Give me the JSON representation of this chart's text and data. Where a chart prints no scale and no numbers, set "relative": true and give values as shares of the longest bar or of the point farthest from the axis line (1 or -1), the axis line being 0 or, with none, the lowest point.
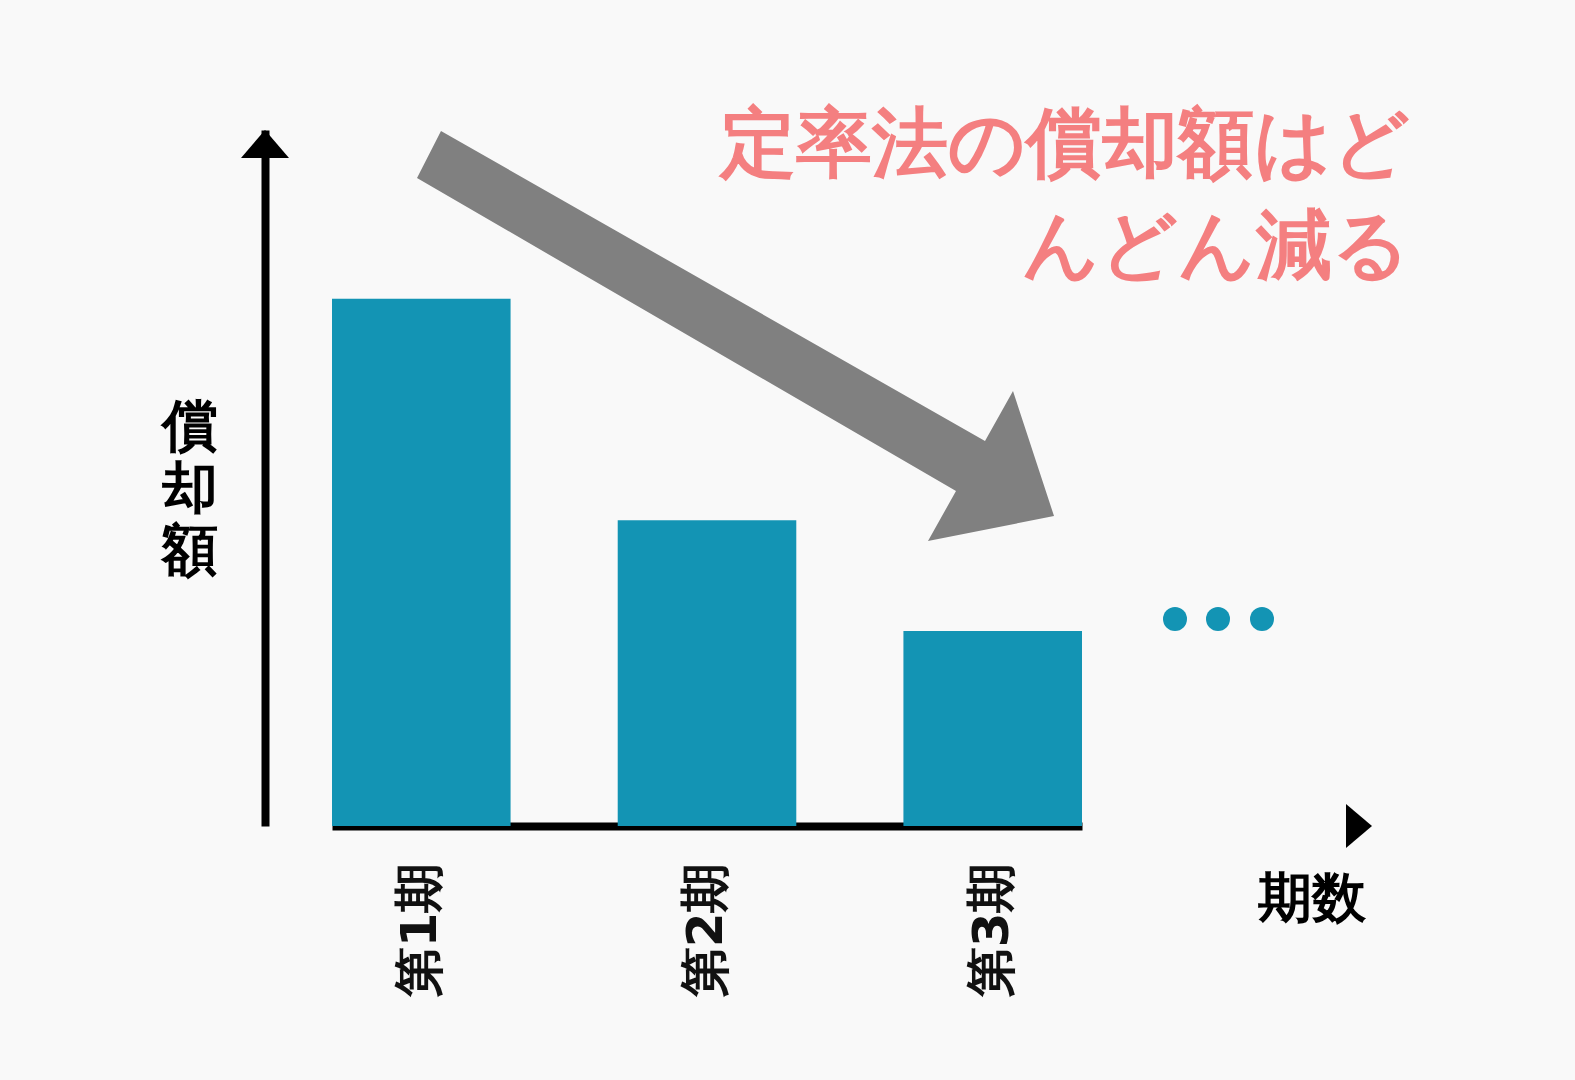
{
  "chart_data": {
    "type": "bar",
    "title": "定率法の償却額はどんどん減る",
    "ylabel": "償却額",
    "xlabel": "期数",
    "relative": true,
    "categories": [
      "第1期",
      "第2期",
      "第3期"
    ],
    "values": [
      1,
      0.58,
      0.37
    ],
    "color": "#1394b4",
    "grid": false
  }
}
